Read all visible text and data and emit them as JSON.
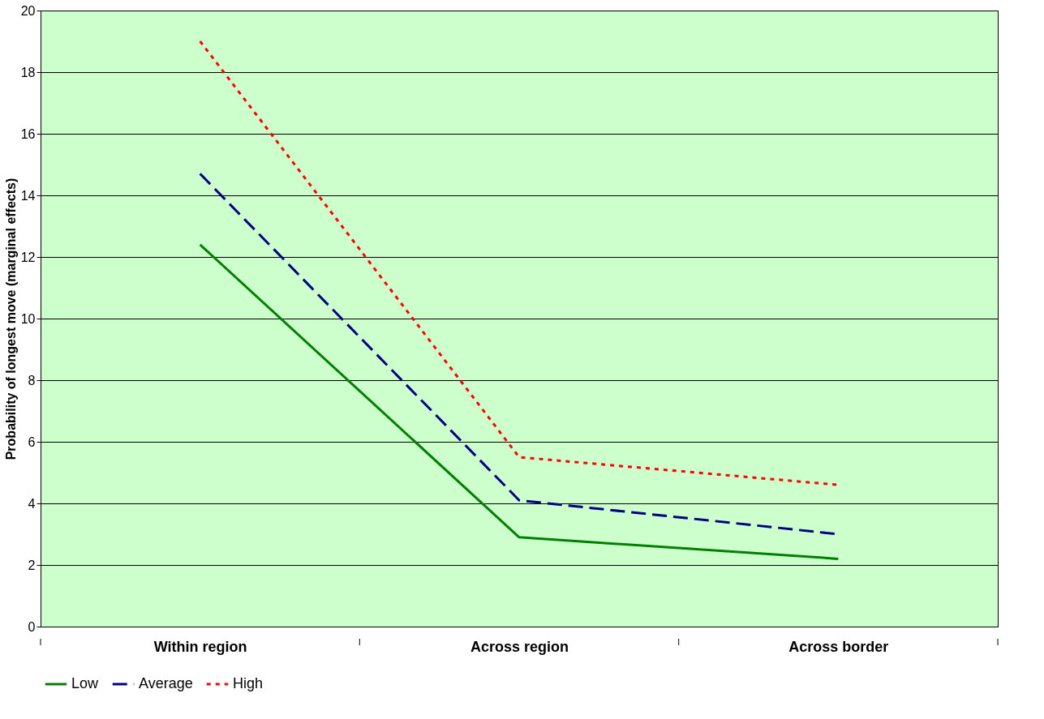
{
  "chart_data": {
    "type": "line",
    "ylabel": "Probability of longest move (marginal effects)",
    "categories": [
      "Within region",
      "Across region",
      "Across border"
    ],
    "series": [
      {
        "name": "Low",
        "color": "#008000",
        "line_style": "solid",
        "values": [
          12.4,
          2.9,
          2.2
        ]
      },
      {
        "name": "Average",
        "color": "#000080",
        "line_style": "dashed",
        "values": [
          14.7,
          4.1,
          3.0
        ]
      },
      {
        "name": "High",
        "color": "#ff0000",
        "line_style": "dotted",
        "values": [
          19.0,
          5.5,
          4.6
        ]
      }
    ],
    "ylim": [
      0,
      20
    ],
    "yticks": [
      0,
      2,
      4,
      6,
      8,
      10,
      12,
      14,
      16,
      18,
      20
    ],
    "grid": "y",
    "legend": "bottom",
    "marker": "none"
  }
}
